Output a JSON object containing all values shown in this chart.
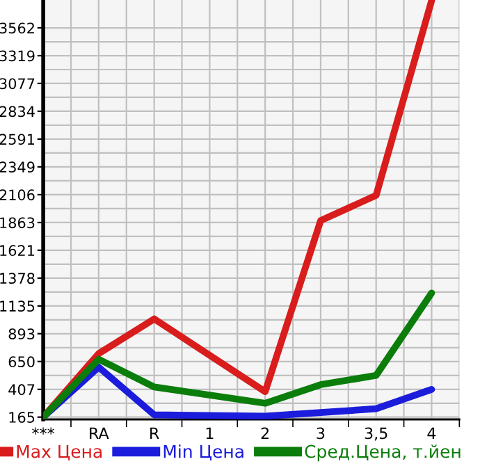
{
  "chart_data": {
    "type": "line",
    "categories": [
      "***",
      "RA",
      "R",
      "1",
      "2",
      "3",
      "3,5",
      "4"
    ],
    "series": [
      {
        "name": "Max Цена",
        "color": "#d91c1c",
        "values": [
          165,
          719,
          1022,
          null,
          387,
          1880,
          2100,
          3800
        ]
      },
      {
        "name": "Min Цена",
        "color": "#1c1cdc",
        "values": [
          165,
          601,
          185,
          null,
          173,
          205,
          238,
          407
        ]
      },
      {
        "name": "Сред.Цена, т.йен",
        "color": "#0a7d0a",
        "values": [
          165,
          670,
          428,
          null,
          286,
          448,
          529,
          1248
        ]
      }
    ],
    "ylim": [
      145,
      3805
    ],
    "yticks": [
      165,
      407,
      650,
      893,
      1135,
      1378,
      1621,
      1863,
      2106,
      2349,
      2591,
      2834,
      3077,
      3319,
      3562
    ],
    "grid": true,
    "legend": "bottom",
    "marker": "none",
    "line_style": "solid"
  }
}
